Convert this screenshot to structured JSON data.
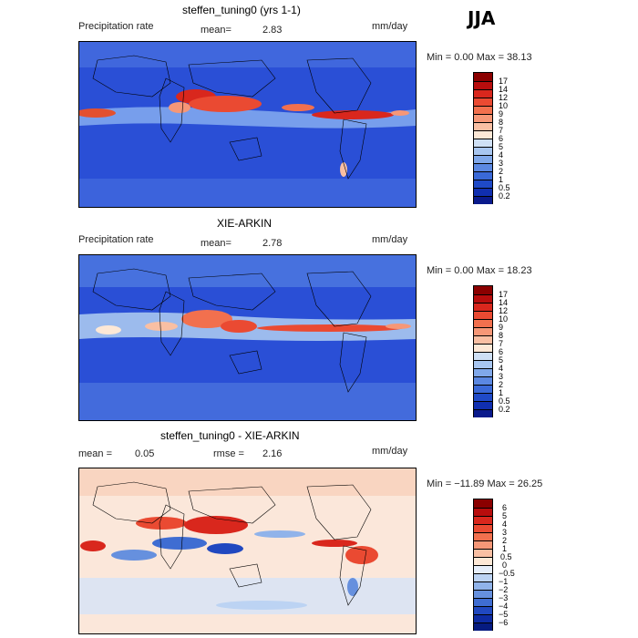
{
  "season": "JJA",
  "panels": [
    {
      "title": "steffen_tuning0 (yrs 1-1)",
      "left_label": "Precipitation rate",
      "stat1_label": "mean=",
      "stat1_value": "2.83",
      "stat2_label": "",
      "stat2_value": "",
      "units": "mm/day",
      "range_text": "Min =    0.00 Max =   38.13",
      "colorbar_labels": [
        "17",
        "14",
        "12",
        "10",
        "9",
        "8",
        "7",
        "6",
        "5",
        "4",
        "3",
        "2",
        "1",
        "0.5",
        "0.2"
      ],
      "colorbar_colors": [
        "#8b0000",
        "#b80d0d",
        "#d9271d",
        "#ea4a32",
        "#f2704e",
        "#f69777",
        "#f9bfa3",
        "#fde8d6",
        "#cfe0f5",
        "#a8c6f0",
        "#80a8ea",
        "#5b88e2",
        "#3a69d8",
        "#1f4ac8",
        "#102fb0",
        "#0a1a8c"
      ]
    },
    {
      "title": "XIE-ARKIN",
      "left_label": "Precipitation rate",
      "stat1_label": "mean=",
      "stat1_value": "2.78",
      "stat2_label": "",
      "stat2_value": "",
      "units": "mm/day",
      "range_text": "Min =    0.00 Max =   18.23",
      "colorbar_labels": [
        "17",
        "14",
        "12",
        "10",
        "9",
        "8",
        "7",
        "6",
        "5",
        "4",
        "3",
        "2",
        "1",
        "0.5",
        "0.2"
      ],
      "colorbar_colors": [
        "#8b0000",
        "#b80d0d",
        "#d9271d",
        "#ea4a32",
        "#f2704e",
        "#f69777",
        "#f9bfa3",
        "#fde8d6",
        "#cfe0f5",
        "#a8c6f0",
        "#80a8ea",
        "#5b88e2",
        "#3a69d8",
        "#1f4ac8",
        "#102fb0",
        "#0a1a8c"
      ]
    },
    {
      "title": "steffen_tuning0 - XIE-ARKIN",
      "left_label": "",
      "stat1_label": "mean =",
      "stat1_value": "0.05",
      "stat2_label": "rmse =",
      "stat2_value": "2.16",
      "units": "mm/day",
      "range_text": "Min = −11.89 Max =   26.25",
      "colorbar_labels": [
        "6",
        "5",
        "4",
        "3",
        "2",
        "1",
        "0.5",
        "0",
        "−0.5",
        "−1",
        "−2",
        "−3",
        "−4",
        "−5",
        "−6"
      ],
      "colorbar_colors": [
        "#8b0000",
        "#b80d0d",
        "#d9271d",
        "#ea4a32",
        "#f2704e",
        "#f69777",
        "#f9bfa3",
        "#fde8d6",
        "#e6eefa",
        "#bcd3f3",
        "#90b3ea",
        "#6690de",
        "#3f6dd2",
        "#2048c0",
        "#0e2ba3",
        "#061b80"
      ]
    }
  ]
}
